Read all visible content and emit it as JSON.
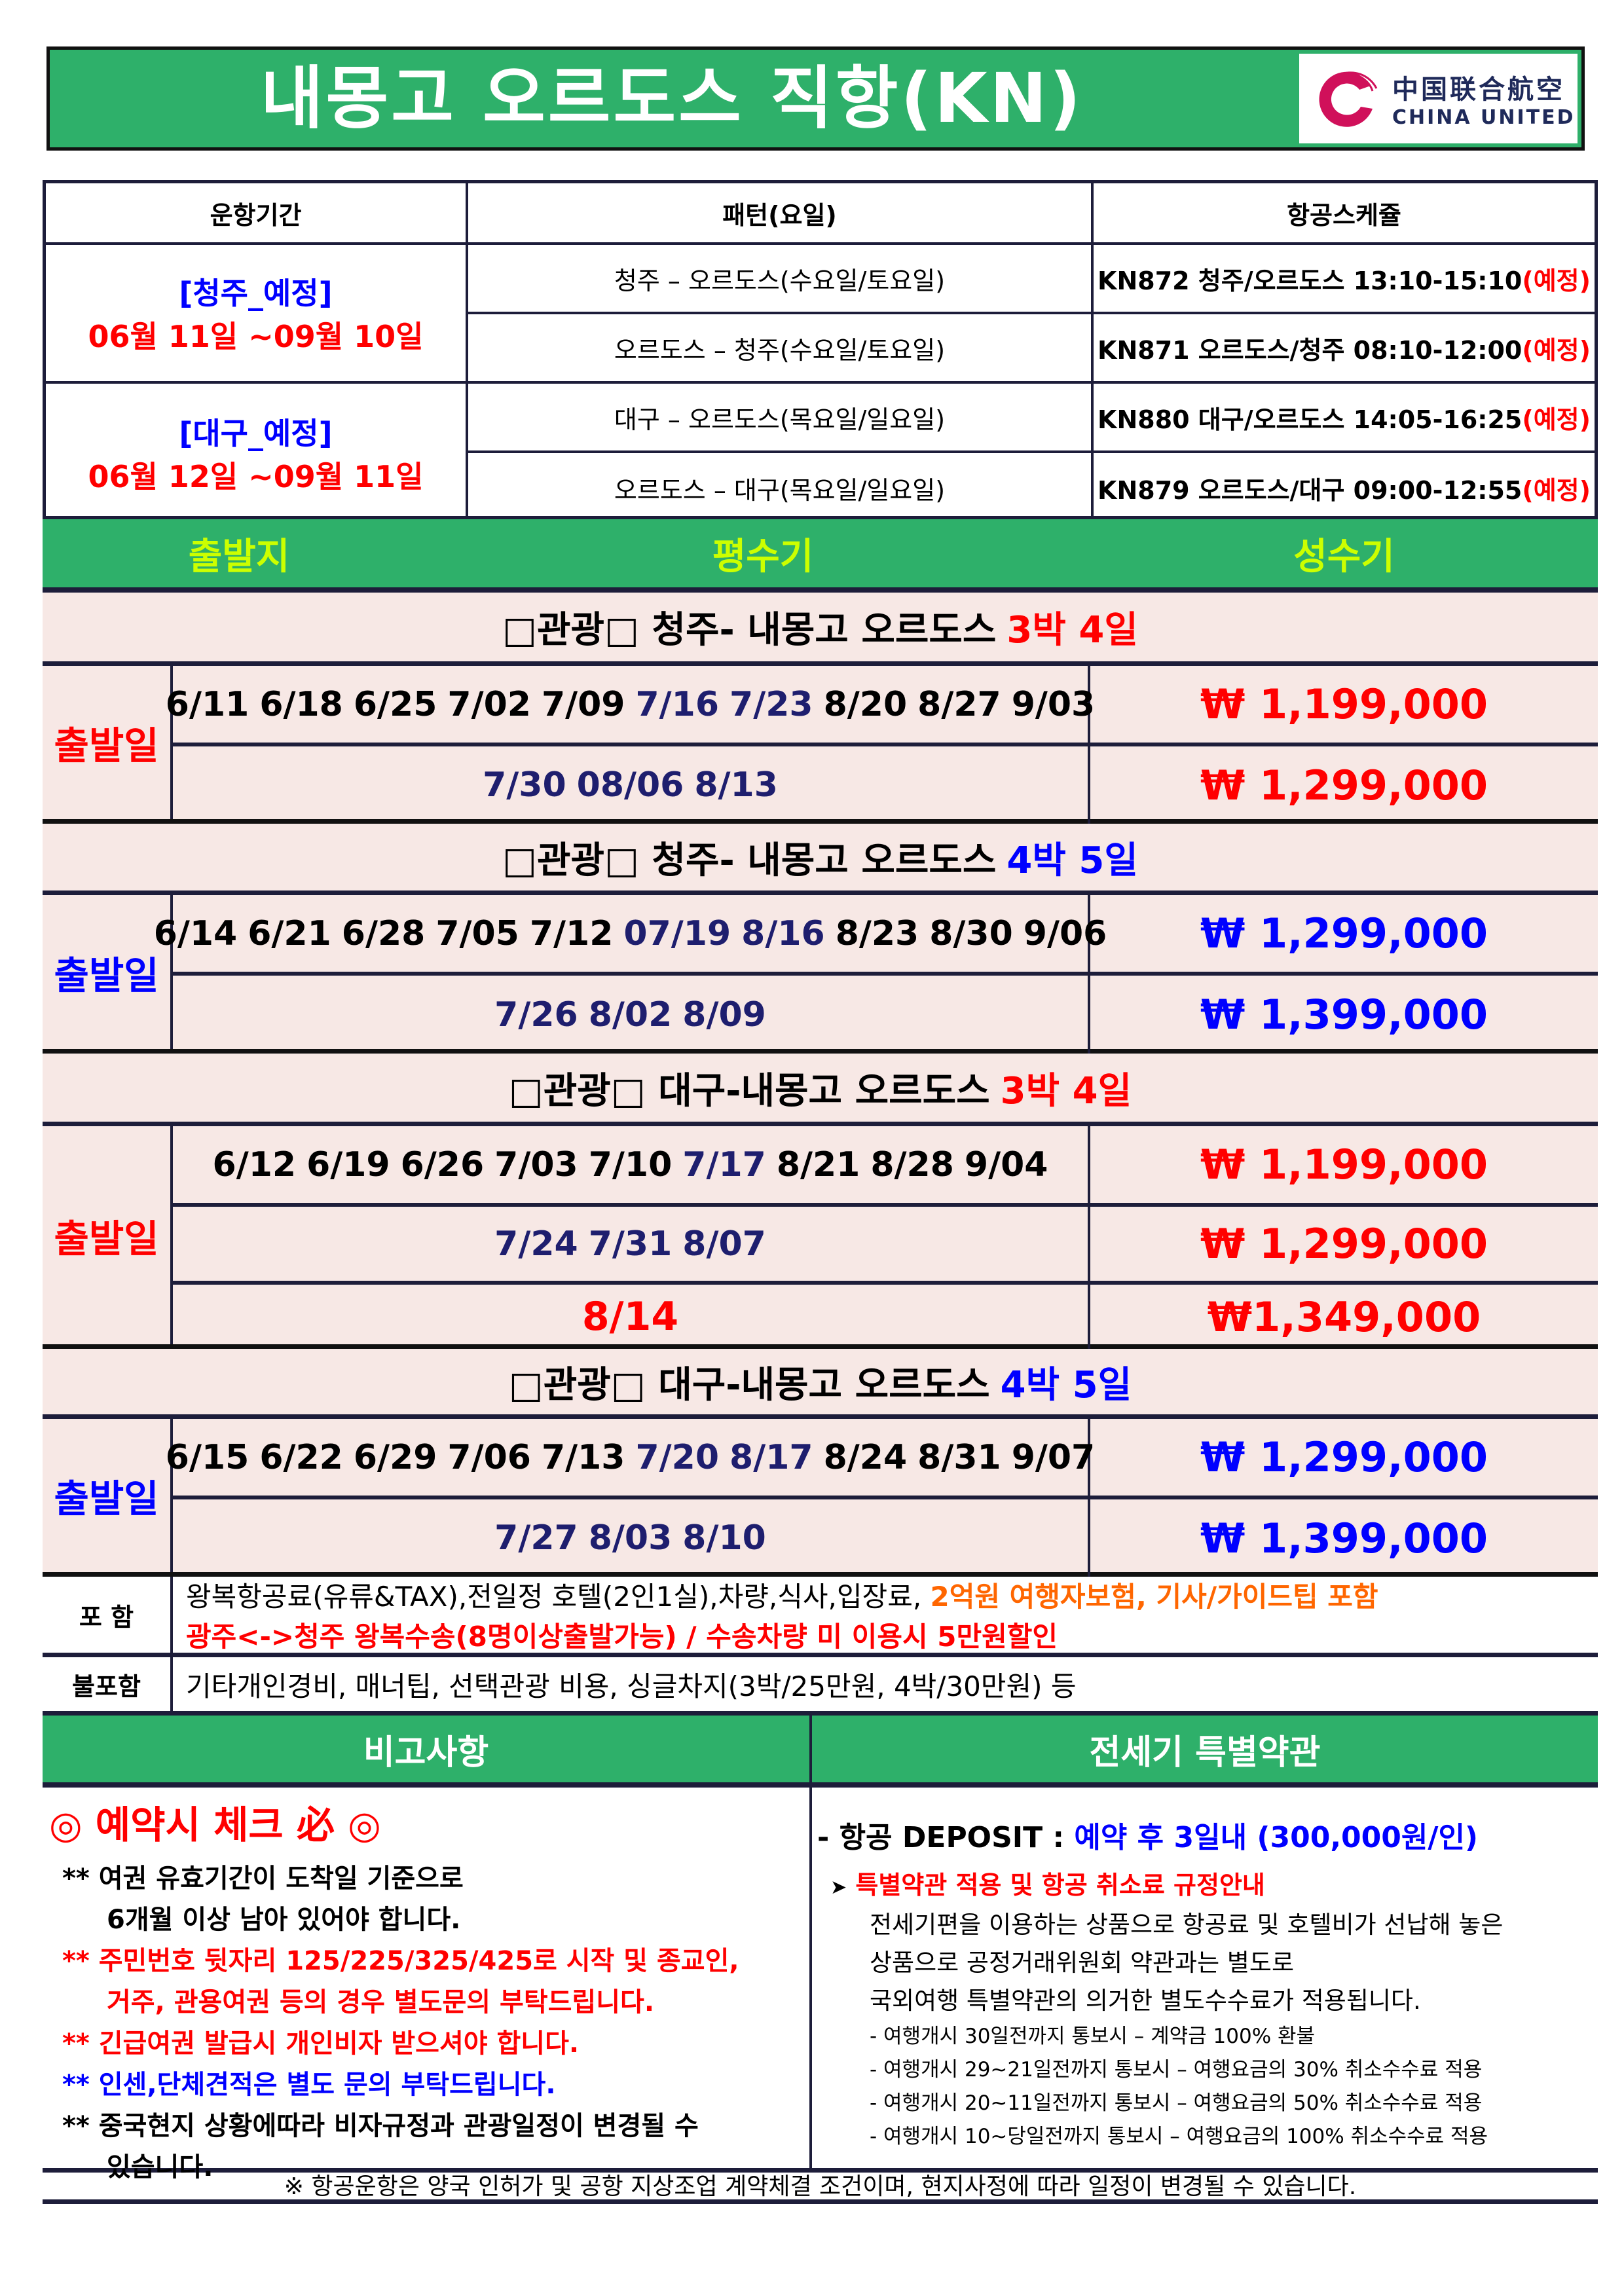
{
  "title": "내몽고 오르도스 직항(KN)",
  "logo": {
    "cn": "中国联合航空",
    "en": "CHINA UNITED",
    "color": "#d0105a"
  },
  "schedule": {
    "headers": [
      "운항기간",
      "패턴(요일)",
      "항공스케쥴"
    ],
    "groups": [
      {
        "label": "[청주_예정]",
        "dates": "06월 11일 ~09월 10일",
        "rows": [
          {
            "pattern": "청주 – 오르도스(수요일/토요일)",
            "flight": "KN872 청주/오르도스 13:10-15:10",
            "note": "(예정)"
          },
          {
            "pattern": "오르도스 – 청주(수요일/토요일)",
            "flight": "KN871 오르도스/청주 08:10-12:00",
            "note": "(예정)"
          }
        ]
      },
      {
        "label": "[대구_예정]",
        "dates": "06월 12일 ~09월 11일",
        "rows": [
          {
            "pattern": "대구 – 오르도스(목요일/일요일)",
            "flight": "KN880 대구/오르도스 14:05-16:25",
            "note": "(예정)"
          },
          {
            "pattern": "오르도스 – 대구(목요일/일요일)",
            "flight": "KN879 오르도스/대구 09:00-12:55",
            "note": "(예정)"
          }
        ]
      }
    ]
  },
  "season_header": [
    "출발지",
    "평수기",
    "성수기"
  ],
  "colors": {
    "green": "#2eb06a",
    "red": "#ff0000",
    "blue": "#0000ff",
    "navy": "#1e1e6e",
    "orange": "#ff6600",
    "pink_bg": "#f7e8e5"
  },
  "sections": [
    {
      "title": "□관광□ 청주- 내몽고 오르도스",
      "suffix": "3박 4일",
      "suffix_color": "#ff0000",
      "depart": "출발일",
      "depart_color": "#ff0000",
      "rows": [
        {
          "dates": [
            [
              "6/11",
              ""
            ],
            [
              "6/18",
              ""
            ],
            [
              "6/25",
              ""
            ],
            [
              "7/02",
              ""
            ],
            [
              "7/09",
              ""
            ],
            [
              "7/16",
              "#1e1e6e"
            ],
            [
              "7/23",
              "#1e1e6e"
            ],
            [
              "8/20",
              ""
            ],
            [
              "8/27",
              ""
            ],
            [
              "9/03",
              ""
            ]
          ],
          "price": "₩ 1,199,000",
          "price_color": "#ff0000"
        },
        {
          "dates": [
            [
              "7/30",
              "#1e1e6e"
            ],
            [
              "08/06",
              "#1e1e6e"
            ],
            [
              "8/13",
              "#1e1e6e"
            ]
          ],
          "price": "₩ 1,299,000",
          "price_color": "#ff0000"
        }
      ]
    },
    {
      "title": "□관광□ 청주- 내몽고 오르도스",
      "suffix": "4박 5일",
      "suffix_color": "#0000ff",
      "depart": "출발일",
      "depart_color": "#0000ff",
      "rows": [
        {
          "dates": [
            [
              "6/14",
              ""
            ],
            [
              "6/21",
              ""
            ],
            [
              "6/28",
              ""
            ],
            [
              "7/05",
              ""
            ],
            [
              "7/12",
              ""
            ],
            [
              "07/19",
              "#1e1e6e"
            ],
            [
              "8/16",
              "#1e1e6e"
            ],
            [
              "8/23",
              ""
            ],
            [
              "8/30",
              ""
            ],
            [
              "9/06",
              ""
            ]
          ],
          "price": "₩ 1,299,000",
          "price_color": "#0000ff"
        },
        {
          "dates": [
            [
              "7/26",
              "#1e1e6e"
            ],
            [
              "8/02",
              "#1e1e6e"
            ],
            [
              "8/09",
              "#1e1e6e"
            ]
          ],
          "price": "₩ 1,399,000",
          "price_color": "#0000ff"
        }
      ]
    },
    {
      "title": "□관광□ 대구-내몽고 오르도스",
      "suffix": "3박 4일",
      "suffix_color": "#ff0000",
      "depart": "출발일",
      "depart_color": "#ff0000",
      "rows": [
        {
          "dates": [
            [
              "6/12",
              ""
            ],
            [
              "6/19",
              ""
            ],
            [
              "6/26",
              ""
            ],
            [
              "7/03",
              ""
            ],
            [
              "7/10",
              ""
            ],
            [
              "7/17",
              "#1e1e6e"
            ],
            [
              "8/21",
              ""
            ],
            [
              "8/28",
              ""
            ],
            [
              "9/04",
              ""
            ]
          ],
          "price": "₩ 1,199,000",
          "price_color": "#ff0000"
        },
        {
          "dates": [
            [
              "7/24",
              "#1e1e6e"
            ],
            [
              "7/31",
              "#1e1e6e"
            ],
            [
              "8/07",
              "#1e1e6e"
            ]
          ],
          "price": "₩ 1,299,000",
          "price_color": "#ff0000"
        },
        {
          "dates": [
            [
              "8/14",
              "#ff0000"
            ]
          ],
          "price": "₩1,349,000",
          "price_color": "#ff0000"
        }
      ]
    },
    {
      "title": "□관광□ 대구-내몽고 오르도스",
      "suffix": "4박 5일",
      "suffix_color": "#0000ff",
      "depart": "출발일",
      "depart_color": "#0000ff",
      "rows": [
        {
          "dates": [
            [
              "6/15",
              ""
            ],
            [
              "6/22",
              ""
            ],
            [
              "6/29",
              ""
            ],
            [
              "7/06",
              ""
            ],
            [
              "7/13",
              ""
            ],
            [
              "7/20",
              "#1e1e6e"
            ],
            [
              "8/17",
              "#1e1e6e"
            ],
            [
              "8/24",
              ""
            ],
            [
              "8/31",
              ""
            ],
            [
              "9/07",
              ""
            ]
          ],
          "price": "₩ 1,299,000",
          "price_color": "#0000ff"
        },
        {
          "dates": [
            [
              "7/27",
              "#1e1e6e"
            ],
            [
              "8/03",
              "#1e1e6e"
            ],
            [
              "8/10",
              "#1e1e6e"
            ]
          ],
          "price": "₩ 1,399,000",
          "price_color": "#0000ff"
        }
      ]
    }
  ],
  "included": {
    "label": "포  함",
    "line1": "왕복항공료(유류&TAX),전일정 호텔(2인1실),차량,식사,입장료, ",
    "line1_highlight": "2억원 여행자보험, 기사/가이드팁 포함",
    "line2": "광주<->청주 왕복수송(8명이상출발가능) / 수송차량 미 이용시 5만원할인"
  },
  "excluded": {
    "label": "불포함",
    "text": "기타개인경비, 매너팁, 선택관광 비용, 싱글차지(3박/25만원, 4박/30만원) 등"
  },
  "notes_header": [
    "비고사항",
    "전세기 특별약관"
  ],
  "notes_left": {
    "title": "◎ 예약시 체크 必 ◎",
    "items": [
      {
        "text": "** 여권 유효기간이 도착일 기준으로",
        "color": "#000"
      },
      {
        "text": "6개월 이상 남아 있어야 합니다.",
        "color": "#000",
        "indent": true
      },
      {
        "text": "** 주민번호 뒷자리 125/225/325/425로 시작 및 종교인,",
        "color": "#ff0000"
      },
      {
        "text": "거주, 관용여권 등의 경우 별도문의 부탁드립니다.",
        "color": "#ff0000",
        "indent": true
      },
      {
        "text": " ** 긴급여권 발급시 개인비자 받으셔야 합니다.",
        "color": "#ff0000"
      },
      {
        "text": "** 인센,단체견적은 별도 문의 부탁드립니다.",
        "color": "#0000ff"
      },
      {
        "text": "** 중국현지 상황에따라 비자규정과 관광일정이 변경될 수",
        "color": "#000"
      },
      {
        "text": "있습니다.",
        "color": "#000",
        "indent": true
      }
    ]
  },
  "notes_right": {
    "deposit_label": "- 항공 DEPOSIT : ",
    "deposit_value": "예약 후 3일내 (300,000원/인)",
    "guide_title": "특별약관 적용 및 항공 취소료 규정안내",
    "paragraph": [
      "전세기편을 이용하는 상품으로 항공료 및 호텔비가 선납해 놓은",
      "상품으로 공정거래위원회 약관과는 별도로",
      "국외여행 특별약관의 의거한 별도수수료가 적용됩니다."
    ],
    "rules": [
      "- 여행개시 30일전까지 통보시 – 계약금 100% 환불",
      "- 여행개시 29~21일전까지 통보시 – 여행요금의 30% 취소수수료 적용",
      "- 여행개시 20~11일전까지 통보시 – 여행요금의 50% 취소수수료 적용",
      "- 여행개시 10~당일전까지 통보시 – 여행요금의 100% 취소수수료 적용"
    ]
  },
  "footer": "※ 항공운항은 양국 인허가 및 공항 지상조업 계약체결 조건이며, 현지사정에 따라 일정이 변경될 수 있습니다."
}
